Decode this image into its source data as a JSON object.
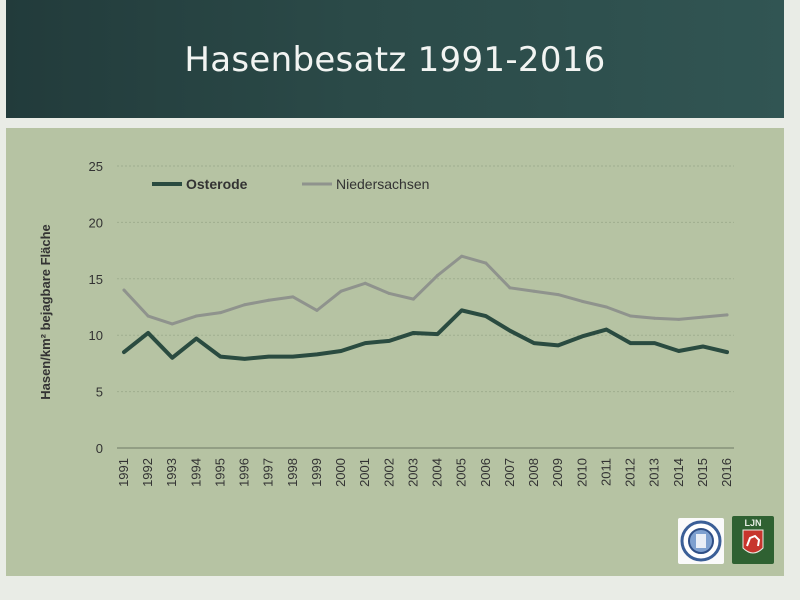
{
  "slide": {
    "title": "Hasenbesatz 1991-2016"
  },
  "logos": {
    "left_icon": "emblem-seal-icon",
    "right_icon": "ljn-horse-shield-icon",
    "right_text": "LJN"
  },
  "chart_data": {
    "type": "line",
    "title": "",
    "xlabel": "",
    "ylabel": "Hasen/km² bejagbare Fläche",
    "ylim": [
      0,
      25
    ],
    "yticks": [
      0,
      5,
      10,
      15,
      20,
      25
    ],
    "grid": "horizontal",
    "legend_position": "top-left",
    "x": [
      "1991",
      "1992",
      "1993",
      "1994",
      "1995",
      "1996",
      "1997",
      "1998",
      "1999",
      "2000",
      "2001",
      "2002",
      "2003",
      "2004",
      "2005",
      "2006",
      "2007",
      "2008",
      "2009",
      "2010",
      "2011",
      "2012",
      "2013",
      "2014",
      "2015",
      "2016"
    ],
    "series": [
      {
        "name": "Osterode",
        "color": "#2a4b40",
        "values": [
          8.5,
          10.2,
          8.0,
          9.7,
          8.1,
          7.9,
          8.1,
          8.1,
          8.3,
          8.6,
          9.3,
          9.5,
          10.2,
          10.1,
          12.2,
          11.7,
          10.4,
          9.3,
          9.1,
          9.9,
          10.5,
          9.3,
          9.3,
          8.6,
          9.0,
          8.5
        ]
      },
      {
        "name": "Niedersachsen",
        "color": "#8f938d",
        "values": [
          14.0,
          11.7,
          11.0,
          11.7,
          12.0,
          12.7,
          13.1,
          13.4,
          12.2,
          13.9,
          14.6,
          13.7,
          13.2,
          15.3,
          17.0,
          16.4,
          14.2,
          13.9,
          13.6,
          13.0,
          12.5,
          11.7,
          11.5,
          11.4,
          11.6,
          11.8
        ]
      }
    ]
  }
}
